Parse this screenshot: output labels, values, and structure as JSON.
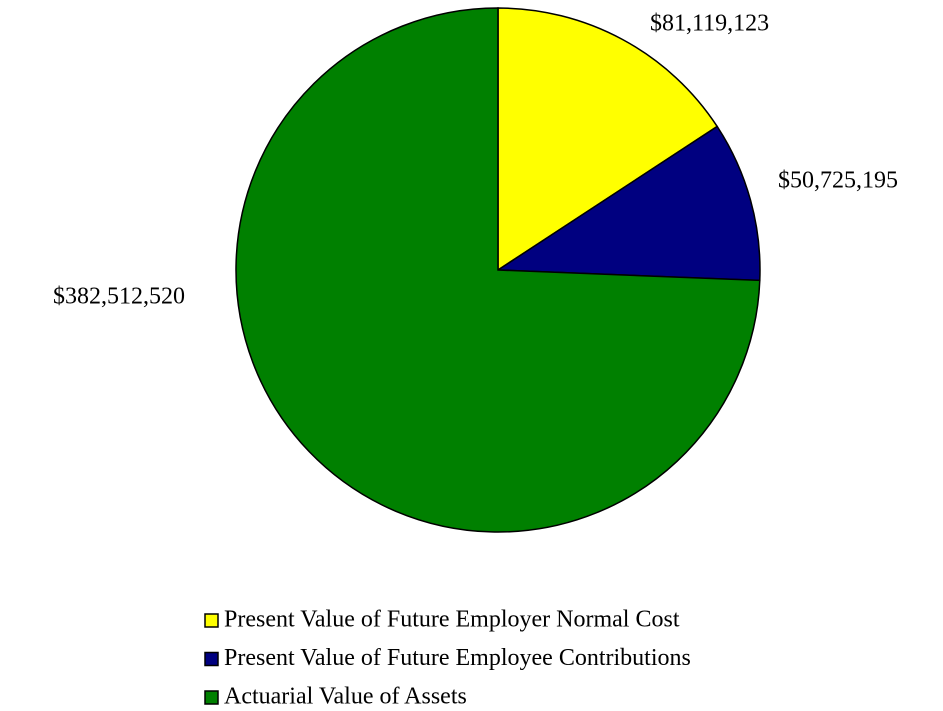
{
  "chart_data": {
    "type": "pie",
    "categories": [
      "Present Value of Future Employer Normal Cost",
      "Present Value of Future Employee Contributions",
      "Actuarial Value of Assets"
    ],
    "values": [
      81119123,
      50725195,
      382512520
    ],
    "value_labels": [
      "$81,119,123",
      "$50,725,195",
      "$382,512,520"
    ],
    "colors": [
      "#ffff00",
      "#000080",
      "#008000"
    ],
    "legend": "bottom"
  }
}
